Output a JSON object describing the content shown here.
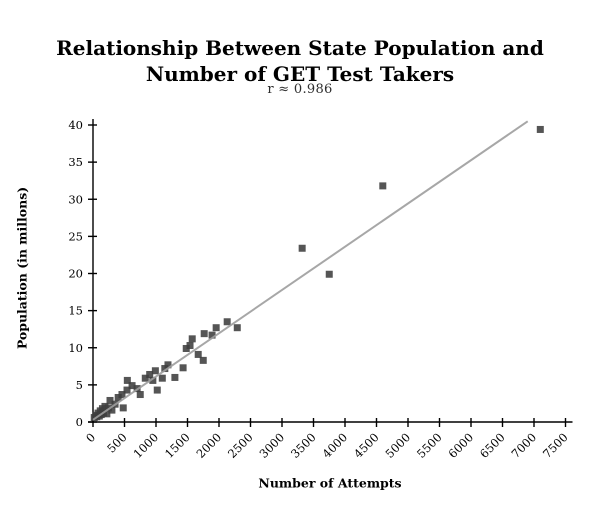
{
  "chart": {
    "title": "Relationship Between State Population and Number of GET Test Takers",
    "subtitle": "r ≈ 0.986",
    "x_axis_title": "Number of Attempts",
    "y_axis_title": "Population (in millons)"
  },
  "chart_data": {
    "type": "scatter",
    "title": "Relationship Between State Population and Number of GET Test Takers",
    "subtitle": "r ≈ 0.986",
    "correlation": "r ≈ 0.986",
    "xlabel": "Number of Attempts",
    "ylabel": "Population (in millons)",
    "xlim": [
      0,
      7500
    ],
    "ylim": [
      0,
      40
    ],
    "xticks": [
      0,
      500,
      1000,
      1500,
      2000,
      2500,
      3000,
      3500,
      4000,
      4500,
      5000,
      5500,
      6000,
      6500,
      7000,
      7500
    ],
    "yticks": [
      0,
      5,
      10,
      15,
      20,
      25,
      30,
      35,
      40
    ],
    "grid": false,
    "legend": "none",
    "marker": "square",
    "marker_color": "#3d3d3d",
    "axis_color": "#000000",
    "trend_line": {
      "x1": 0,
      "y1": 0.3,
      "x2": 6900,
      "y2": 40.5,
      "color": "#9e9e9e"
    },
    "points": [
      [
        20,
        0.6
      ],
      [
        45,
        0.9
      ],
      [
        60,
        0.7
      ],
      [
        80,
        1.2
      ],
      [
        100,
        0.8
      ],
      [
        115,
        1.5
      ],
      [
        130,
        1.0
      ],
      [
        150,
        1.8
      ],
      [
        165,
        1.2
      ],
      [
        190,
        2.1
      ],
      [
        220,
        1.1
      ],
      [
        245,
        1.9
      ],
      [
        270,
        2.9
      ],
      [
        300,
        1.6
      ],
      [
        350,
        2.4
      ],
      [
        400,
        3.3
      ],
      [
        460,
        3.7
      ],
      [
        480,
        1.9
      ],
      [
        540,
        4.3
      ],
      [
        545,
        5.6
      ],
      [
        620,
        4.9
      ],
      [
        700,
        4.5
      ],
      [
        750,
        3.7
      ],
      [
        830,
        5.9
      ],
      [
        900,
        6.4
      ],
      [
        950,
        5.6
      ],
      [
        990,
        6.9
      ],
      [
        1020,
        4.3
      ],
      [
        1100,
        5.9
      ],
      [
        1140,
        7.2
      ],
      [
        1190,
        7.7
      ],
      [
        1300,
        6.0
      ],
      [
        1430,
        7.3
      ],
      [
        1480,
        9.9
      ],
      [
        1540,
        10.3
      ],
      [
        1575,
        11.2
      ],
      [
        1670,
        9.1
      ],
      [
        1750,
        8.3
      ],
      [
        1765,
        11.9
      ],
      [
        1890,
        11.7
      ],
      [
        1955,
        12.7
      ],
      [
        2130,
        13.5
      ],
      [
        2290,
        12.7
      ],
      [
        3320,
        23.4
      ],
      [
        3750,
        19.9
      ],
      [
        4600,
        31.8
      ],
      [
        7100,
        39.4
      ]
    ]
  }
}
